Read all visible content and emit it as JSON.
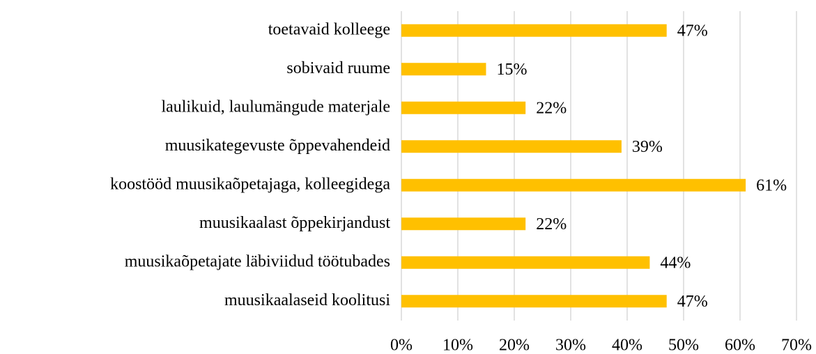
{
  "chart_data": {
    "type": "barh",
    "categories": [
      "toetavaid kolleege",
      "sobivaid ruume",
      "laulikuid, laulumängude materjale",
      "muusikategevuste õppevahendeid",
      "koostööd muusikaõpetajaga, kolleegidega",
      "muusikaalast õppekirjandust",
      "muusikaõpetajate läbiviidud töötubades",
      "muusikaalaseid koolitusi"
    ],
    "values": [
      47,
      15,
      22,
      39,
      61,
      22,
      44,
      47
    ],
    "value_labels": [
      "47%",
      "15%",
      "22%",
      "39%",
      "61%",
      "22%",
      "44%",
      "47%"
    ],
    "color": "#ffc000",
    "xlim": [
      0,
      70
    ],
    "xticks": [
      {
        "value": 0,
        "label": "0%"
      },
      {
        "value": 10,
        "label": "10%"
      },
      {
        "value": 20,
        "label": "20%"
      },
      {
        "value": 30,
        "label": "30%"
      },
      {
        "value": 40,
        "label": "40%"
      },
      {
        "value": 50,
        "label": "50%"
      },
      {
        "value": 60,
        "label": "60%"
      },
      {
        "value": 70,
        "label": "70%"
      }
    ],
    "grid": true
  }
}
